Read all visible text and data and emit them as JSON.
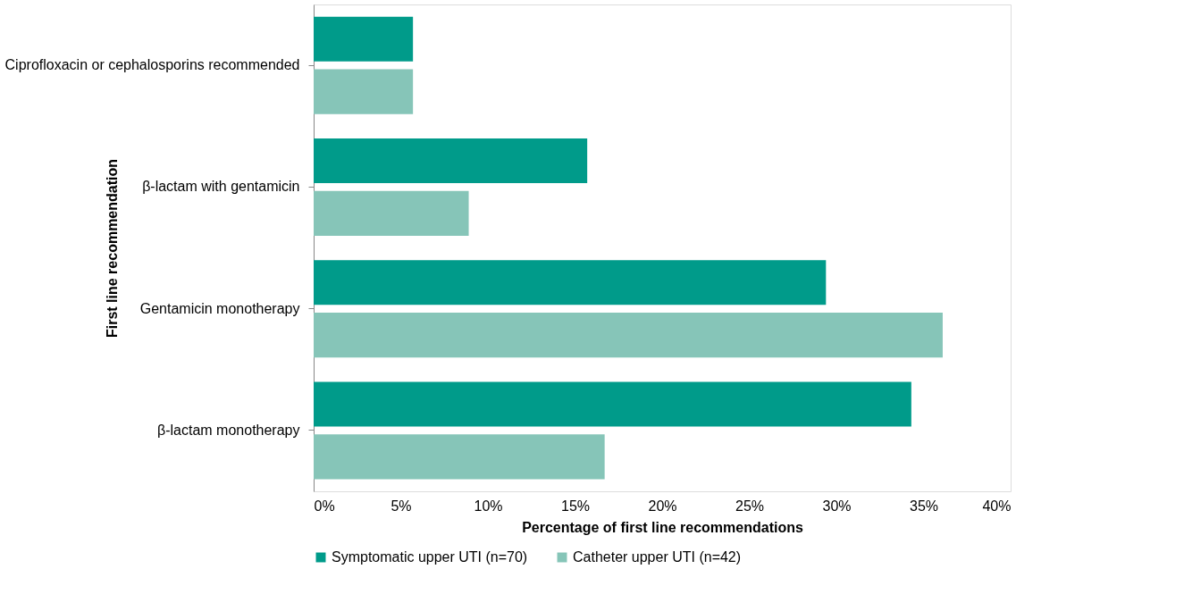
{
  "chart_data": {
    "type": "bar",
    "orientation": "horizontal",
    "xlabel": "Percentage of first line recommendations",
    "ylabel": "First line recommendation",
    "categories": [
      "Ciprofloxacin or cephalosporins recommended",
      "β-lactam with gentamicin",
      "Gentamicin monotherapy",
      "β-lactam monotherapy"
    ],
    "series": [
      {
        "name": "Symptomatic upper UTI (n=70)",
        "color": "#009b8a",
        "values": [
          5.7,
          15.7,
          29.4,
          34.3
        ]
      },
      {
        "name": "Catheter upper UTI (n=42)",
        "color": "#86c5b8",
        "values": [
          5.7,
          8.9,
          36.1,
          16.7
        ]
      }
    ],
    "xlim": [
      0,
      40
    ],
    "xticks": [
      {
        "value": 0,
        "label": "0%"
      },
      {
        "value": 5,
        "label": "5%"
      },
      {
        "value": 10,
        "label": "10%"
      },
      {
        "value": 15,
        "label": "15%"
      },
      {
        "value": 20,
        "label": "20%"
      },
      {
        "value": 25,
        "label": "25%"
      },
      {
        "value": 30,
        "label": "30%"
      },
      {
        "value": 35,
        "label": "35%"
      },
      {
        "value": 40,
        "label": "40%"
      }
    ],
    "grid": false,
    "legend": "bottom"
  }
}
